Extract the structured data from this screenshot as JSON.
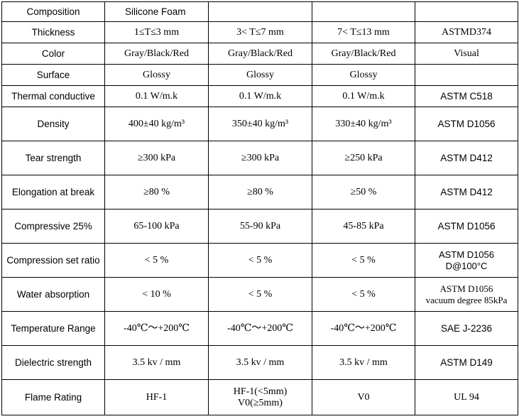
{
  "table": {
    "header": {
      "label": "Composition",
      "material": "Silicone Foam",
      "c2": "",
      "c3": "",
      "c4": ""
    },
    "rows": [
      {
        "property": "Thickness",
        "v1": "1≤T≤3 mm",
        "v2": "3< T≤7 mm",
        "v3": "7< T≤13 mm",
        "method": "ASTMD374"
      },
      {
        "property": "Color",
        "v1": "Gray/Black/Red",
        "v2": "Gray/Black/Red",
        "v3": "Gray/Black/Red",
        "method": "Visual"
      },
      {
        "property": "Surface",
        "v1": "Glossy",
        "v2": "Glossy",
        "v3": "Glossy",
        "method": ""
      },
      {
        "property": "Thermal conductive",
        "v1": "0.1 W/m.k",
        "v2": "0.1 W/m.k",
        "v3": "0.1 W/m.k",
        "method": "ASTM C518"
      },
      {
        "property": "Density",
        "v1": "400±40 kg/m³",
        "v2": "350±40 kg/m³",
        "v3": "330±40 kg/m³",
        "method": "ASTM D1056"
      },
      {
        "property": "Tear strength",
        "v1": "≥300 kPa",
        "v2": "≥300 kPa",
        "v3": "≥250 kPa",
        "method": "ASTM D412"
      },
      {
        "property": "Elongation at break",
        "v1": "≥80 %",
        "v2": "≥80 %",
        "v3": "≥50 %",
        "method": "ASTM D412"
      },
      {
        "property": "Compressive 25%",
        "v1": "65-100 kPa",
        "v2": "55-90 kPa",
        "v3": "45-85 kPa",
        "method": "ASTM D1056"
      },
      {
        "property": "Compression set ratio",
        "v1": "< 5 %",
        "v2": "< 5 %",
        "v3": "< 5 %",
        "method_line1": "ASTM D1056",
        "method_line2": "D@100°C"
      },
      {
        "property": "Water absorption",
        "v1": "< 10 %",
        "v2": "< 5 %",
        "v3": "< 5 %",
        "method_line1": "ASTM D1056",
        "method_line2": "vacuum degree 85kPa"
      },
      {
        "property": "Temperature Range",
        "v1": "-40℃～+200℃",
        "v2": "-40℃～+200℃",
        "v3": "-40℃～+200℃",
        "method": "SAE J-2236"
      },
      {
        "property": "Dielectric strength",
        "v1": "3.5  kv / mm",
        "v2": "3.5  kv / mm",
        "v3": "3.5  kv / mm",
        "method": "ASTM D149"
      },
      {
        "property": "Flame Rating",
        "v1": "HF-1",
        "v2_line1": "HF-1(<5mm)",
        "v2_line2": "V0(≥5mm)",
        "v3": "V0",
        "method": "UL 94"
      }
    ]
  }
}
